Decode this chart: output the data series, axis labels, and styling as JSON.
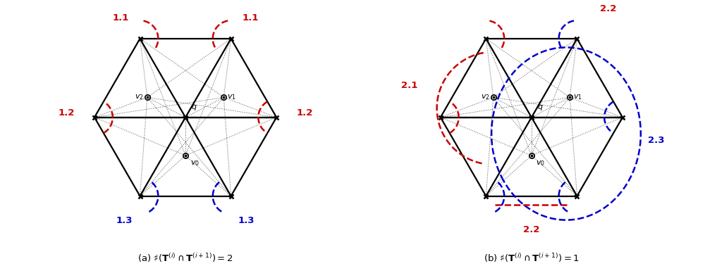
{
  "fig_width": 10.17,
  "fig_height": 3.78,
  "dpi": 100,
  "background": "#ffffff",
  "caption_a": "(a) $\\sharp(\\mathbf{T}^{(i)} \\cap \\mathbf{T}^{(i+1)}) = 2$",
  "caption_b": "(b) $\\sharp(\\mathbf{T}^{(i)} \\cap \\mathbf{T}^{(i+1)}) = 1$",
  "hex_r": 1.0,
  "label_color_red": "#cc0000",
  "label_color_blue": "#0000cc",
  "label_color_black": "#000000",
  "edge_color": "#000000",
  "dotted_color": "#555555"
}
